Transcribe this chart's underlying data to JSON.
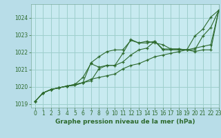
{
  "title": "Graphe pression niveau de la mer (hPa)",
  "background_color": "#b8dde8",
  "plot_bg_color": "#c8eaf0",
  "grid_color": "#9ecfcc",
  "line_color": "#2d6a2d",
  "xlim": [
    -0.5,
    23
  ],
  "ylim": [
    1018.8,
    1024.8
  ],
  "yticks": [
    1019,
    1020,
    1021,
    1022,
    1023,
    1024
  ],
  "xticks": [
    0,
    1,
    2,
    3,
    4,
    5,
    6,
    7,
    8,
    9,
    10,
    11,
    12,
    13,
    14,
    15,
    16,
    17,
    18,
    19,
    20,
    21,
    22,
    23
  ],
  "series": [
    [
      1019.15,
      1019.65,
      1019.85,
      1019.95,
      1020.05,
      1020.1,
      1020.25,
      1021.4,
      1021.75,
      1022.05,
      1022.15,
      1022.15,
      1022.7,
      1022.55,
      1022.55,
      1022.65,
      1022.2,
      1022.2,
      1022.2,
      1022.15,
      1022.95,
      1023.35,
      1024.05,
      1024.45
    ],
    [
      1019.15,
      1019.65,
      1019.85,
      1019.95,
      1020.05,
      1020.1,
      1020.25,
      1020.35,
      1021.05,
      1021.25,
      1021.25,
      1021.95,
      1022.75,
      1022.55,
      1022.65,
      1022.55,
      1022.45,
      1022.2,
      1022.2,
      1022.15,
      1022.05,
      1022.15,
      1022.15,
      1024.45
    ],
    [
      1019.15,
      1019.65,
      1019.85,
      1019.95,
      1020.05,
      1020.15,
      1020.55,
      1021.35,
      1021.15,
      1021.25,
      1021.25,
      1021.45,
      1021.85,
      1022.15,
      1022.25,
      1022.65,
      1022.15,
      1022.15,
      1022.15,
      1022.15,
      1022.15,
      1022.95,
      1023.45,
      1024.45
    ],
    [
      1019.15,
      1019.65,
      1019.85,
      1019.95,
      1020.05,
      1020.15,
      1020.25,
      1020.45,
      1020.55,
      1020.65,
      1020.75,
      1021.05,
      1021.25,
      1021.35,
      1021.55,
      1021.75,
      1021.85,
      1021.95,
      1022.05,
      1022.15,
      1022.25,
      1022.35,
      1022.45,
      1024.45
    ]
  ],
  "title_fontsize": 6.5,
  "tick_fontsize": 5.5,
  "xlabel_fontsize": 6.5
}
